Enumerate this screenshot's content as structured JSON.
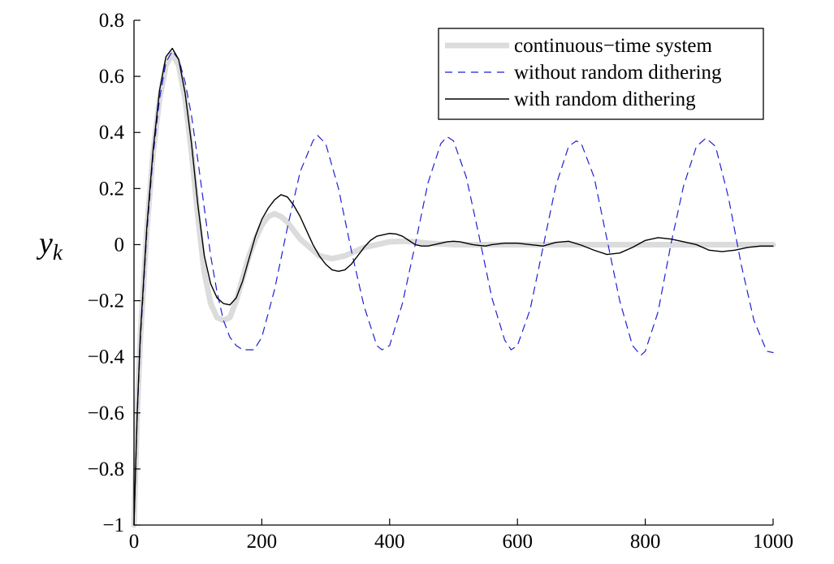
{
  "chart_data": {
    "type": "line",
    "title": "",
    "xlabel": "",
    "ylabel": "y",
    "ylabel_subscript": "k",
    "xlim": [
      0,
      1000
    ],
    "ylim": [
      -1,
      0.8
    ],
    "x_ticks": [
      0,
      200,
      400,
      600,
      800,
      1000
    ],
    "x_tick_labels": [
      "0",
      "200",
      "400",
      "600",
      "800",
      "1000"
    ],
    "y_ticks": [
      -1,
      -0.8,
      -0.6,
      -0.4,
      -0.2,
      0,
      0.2,
      0.4,
      0.6,
      0.8
    ],
    "y_tick_labels": [
      "−1",
      "−0.8",
      "−0.6",
      "−0.4",
      "−0.2",
      "0",
      "0.2",
      "0.4",
      "0.6",
      "0.8"
    ],
    "grid": false,
    "legend_position": "top-right",
    "series": [
      {
        "name": "continuous−time system",
        "color": "#dcdcdc",
        "style": "solid-thick",
        "x": [
          0,
          5,
          10,
          20,
          30,
          40,
          50,
          60,
          70,
          80,
          90,
          100,
          110,
          120,
          130,
          140,
          150,
          160,
          170,
          180,
          190,
          200,
          210,
          220,
          230,
          240,
          250,
          260,
          270,
          280,
          290,
          300,
          310,
          320,
          330,
          340,
          350,
          360,
          380,
          400,
          420,
          440,
          460,
          500,
          550,
          600,
          700,
          800,
          900,
          1000
        ],
        "y": [
          -1.0,
          -0.6,
          -0.33,
          0.05,
          0.33,
          0.52,
          0.64,
          0.68,
          0.64,
          0.52,
          0.33,
          0.1,
          -0.1,
          -0.21,
          -0.26,
          -0.27,
          -0.26,
          -0.2,
          -0.12,
          -0.04,
          0.02,
          0.07,
          0.1,
          0.11,
          0.1,
          0.08,
          0.05,
          0.02,
          0.0,
          -0.02,
          -0.04,
          -0.045,
          -0.05,
          -0.045,
          -0.04,
          -0.03,
          -0.02,
          -0.01,
          0.0,
          0.01,
          0.012,
          0.01,
          0.005,
          0.0,
          0.0,
          0.0,
          0.0,
          0.0,
          0.0,
          0.0
        ]
      },
      {
        "name": "without random dithering",
        "color": "#1f1fd6",
        "style": "dashed",
        "x": [
          0,
          5,
          10,
          20,
          30,
          40,
          50,
          60,
          70,
          80,
          90,
          100,
          110,
          120,
          130,
          140,
          150,
          160,
          170,
          180,
          188,
          200,
          220,
          240,
          260,
          280,
          287,
          300,
          320,
          340,
          360,
          380,
          388,
          400,
          420,
          440,
          460,
          480,
          490,
          500,
          520,
          540,
          560,
          580,
          590,
          600,
          620,
          640,
          660,
          680,
          692,
          700,
          720,
          740,
          760,
          780,
          793,
          800,
          820,
          840,
          860,
          880,
          895,
          910,
          930,
          950,
          970,
          990,
          1000
        ],
        "y": [
          -1.0,
          -0.62,
          -0.34,
          0.04,
          0.32,
          0.52,
          0.65,
          0.69,
          0.66,
          0.58,
          0.46,
          0.3,
          0.13,
          -0.04,
          -0.17,
          -0.27,
          -0.33,
          -0.36,
          -0.375,
          -0.375,
          -0.375,
          -0.33,
          -0.16,
          0.06,
          0.26,
          0.37,
          0.39,
          0.36,
          0.2,
          -0.02,
          -0.22,
          -0.36,
          -0.375,
          -0.36,
          -0.21,
          0.0,
          0.22,
          0.36,
          0.385,
          0.37,
          0.24,
          0.03,
          -0.19,
          -0.34,
          -0.375,
          -0.36,
          -0.23,
          -0.01,
          0.21,
          0.35,
          0.37,
          0.36,
          0.24,
          0.02,
          -0.2,
          -0.36,
          -0.395,
          -0.38,
          -0.24,
          0.0,
          0.21,
          0.35,
          0.38,
          0.35,
          0.17,
          -0.07,
          -0.27,
          -0.38,
          -0.385
        ]
      },
      {
        "name": "with random dithering",
        "color": "#000000",
        "style": "solid",
        "x": [
          0,
          5,
          10,
          20,
          30,
          40,
          50,
          60,
          70,
          80,
          90,
          100,
          110,
          120,
          130,
          140,
          150,
          160,
          170,
          180,
          190,
          200,
          210,
          220,
          230,
          240,
          250,
          260,
          270,
          280,
          290,
          300,
          310,
          320,
          330,
          340,
          350,
          360,
          370,
          380,
          390,
          400,
          410,
          420,
          430,
          440,
          450,
          460,
          470,
          480,
          490,
          500,
          510,
          520,
          530,
          540,
          550,
          560,
          580,
          600,
          620,
          640,
          660,
          680,
          700,
          720,
          740,
          760,
          780,
          800,
          820,
          840,
          860,
          880,
          900,
          920,
          940,
          960,
          980,
          1000
        ],
        "y": [
          -1.0,
          -0.6,
          -0.32,
          0.06,
          0.34,
          0.55,
          0.67,
          0.7,
          0.66,
          0.54,
          0.36,
          0.14,
          -0.04,
          -0.14,
          -0.19,
          -0.21,
          -0.215,
          -0.19,
          -0.13,
          -0.05,
          0.03,
          0.09,
          0.13,
          0.16,
          0.178,
          0.17,
          0.14,
          0.1,
          0.05,
          0.0,
          -0.04,
          -0.07,
          -0.09,
          -0.095,
          -0.09,
          -0.07,
          -0.04,
          -0.01,
          0.015,
          0.03,
          0.035,
          0.04,
          0.038,
          0.03,
          0.015,
          0.0,
          -0.005,
          -0.005,
          0.0,
          0.005,
          0.01,
          0.012,
          0.01,
          0.005,
          0.0,
          -0.003,
          -0.005,
          0.0,
          0.005,
          0.005,
          0.0,
          -0.005,
          0.008,
          0.012,
          -0.002,
          -0.02,
          -0.035,
          -0.03,
          -0.01,
          0.015,
          0.025,
          0.02,
          0.01,
          0.0,
          -0.02,
          -0.025,
          -0.02,
          -0.01,
          -0.005,
          -0.005
        ]
      }
    ]
  }
}
